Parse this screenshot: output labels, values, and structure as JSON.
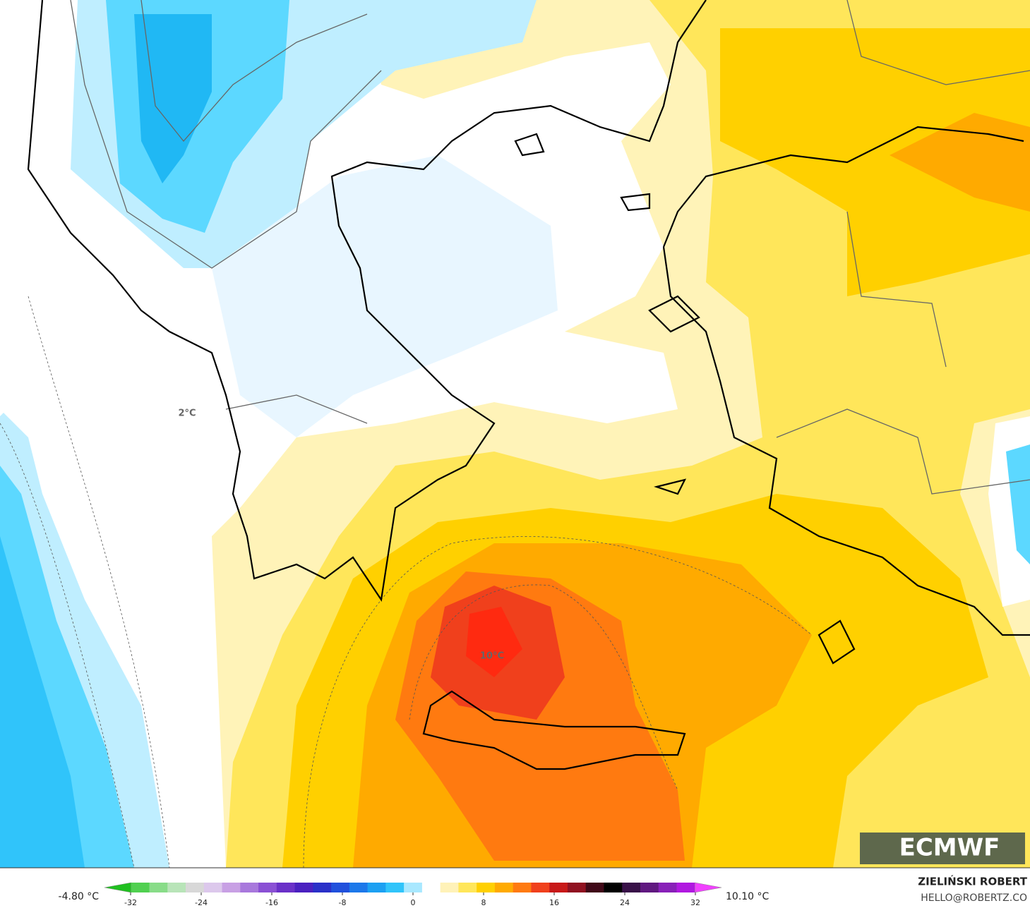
{
  "map": {
    "labels": [
      "2°C",
      "10°C"
    ],
    "logo": "ECMWF",
    "min_label": "-4.80 °C",
    "max_label": "10.10 °C",
    "author": "ZIELIŃSKI ROBERT",
    "contact": "HELLO@ROBERTZ.CO",
    "colorbar": {
      "lim": [
        -34,
        34
      ],
      "ticks": [
        -32,
        -24,
        -16,
        -8,
        0,
        8,
        16,
        24,
        32
      ],
      "colors": [
        "#20c020",
        "#50d050",
        "#88dc88",
        "#b8e4b8",
        "#d8d8d8",
        "#dcc8ec",
        "#c8a0e4",
        "#a878dc",
        "#8a50d4",
        "#6a30c8",
        "#4a20c0",
        "#2a30c8",
        "#2050dc",
        "#1c78ea",
        "#1ca0f2",
        "#30c4fa",
        "#a8e8ff",
        "#ffffff",
        "#fff2b8",
        "#ffe65a",
        "#ffd000",
        "#ffaa00",
        "#ff7a10",
        "#f0401c",
        "#c81818",
        "#901020",
        "#400818",
        "#000000",
        "#381048",
        "#601880",
        "#8820b8",
        "#b018e0",
        "#f040ff"
      ]
    }
  }
}
